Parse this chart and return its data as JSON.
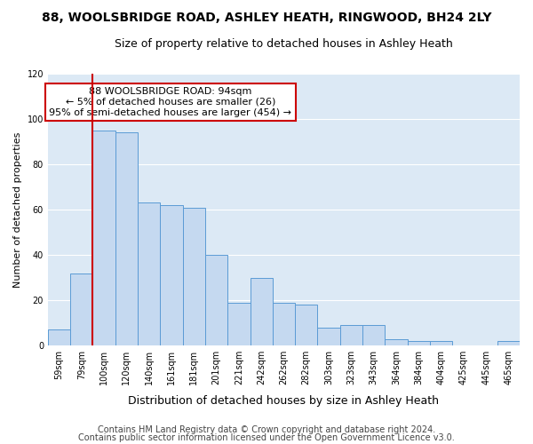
{
  "title": "88, WOOLSBRIDGE ROAD, ASHLEY HEATH, RINGWOOD, BH24 2LY",
  "subtitle": "Size of property relative to detached houses in Ashley Heath",
  "xlabel": "Distribution of detached houses by size in Ashley Heath",
  "ylabel": "Number of detached properties",
  "bin_labels": [
    "59sqm",
    "79sqm",
    "100sqm",
    "120sqm",
    "140sqm",
    "161sqm",
    "181sqm",
    "201sqm",
    "221sqm",
    "242sqm",
    "262sqm",
    "282sqm",
    "303sqm",
    "323sqm",
    "343sqm",
    "364sqm",
    "384sqm",
    "404sqm",
    "425sqm",
    "445sqm",
    "465sqm"
  ],
  "bar_heights": [
    7,
    32,
    95,
    94,
    63,
    62,
    61,
    40,
    19,
    30,
    19,
    18,
    8,
    9,
    9,
    3,
    2,
    2,
    0,
    0,
    2
  ],
  "bar_color": "#c5d9f0",
  "bar_edge_color": "#5b9bd5",
  "ylim": [
    0,
    120
  ],
  "yticks": [
    0,
    20,
    40,
    60,
    80,
    100,
    120
  ],
  "vline_color": "#cc0000",
  "annotation_title": "88 WOOLSBRIDGE ROAD: 94sqm",
  "annotation_line1": "← 5% of detached houses are smaller (26)",
  "annotation_line2": "95% of semi-detached houses are larger (454) →",
  "annotation_box_color": "#ffffff",
  "annotation_box_edge": "#cc0000",
  "footer1": "Contains HM Land Registry data © Crown copyright and database right 2024.",
  "footer2": "Contains public sector information licensed under the Open Government Licence v3.0.",
  "background_color": "#dce9f5",
  "fig_background": "#ffffff",
  "grid_color": "#ffffff",
  "title_fontsize": 10,
  "subtitle_fontsize": 9,
  "xlabel_fontsize": 9,
  "ylabel_fontsize": 8,
  "tick_fontsize": 7,
  "footer_fontsize": 7,
  "annotation_fontsize": 8
}
